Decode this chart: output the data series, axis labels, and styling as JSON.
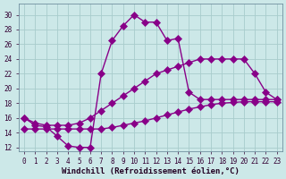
{
  "bg_color": "#cce8e8",
  "grid_color": "#a8cccc",
  "line_color": "#880088",
  "xlabel": "Windchill (Refroidissement éolien,°C)",
  "xlabel_fontsize": 6.5,
  "ytick_vals": [
    12,
    14,
    16,
    18,
    20,
    22,
    24,
    26,
    28,
    30
  ],
  "ylim": [
    11.5,
    31.5
  ],
  "xlim": [
    -0.5,
    23.5
  ],
  "line1_x": [
    0,
    1,
    2,
    3,
    4,
    5,
    6,
    7,
    8,
    9,
    10,
    11,
    12,
    13,
    14,
    15,
    16,
    17,
    18,
    19,
    20,
    21,
    22,
    23
  ],
  "line1_y": [
    16.0,
    15.0,
    14.8,
    13.5,
    12.2,
    12.0,
    12.0,
    22.0,
    26.5,
    28.5,
    30.0,
    29.0,
    29.0,
    26.5,
    26.8,
    19.5,
    18.5,
    18.5,
    18.5,
    18.5,
    18.5,
    18.5,
    18.5,
    18.5
  ],
  "line2_x": [
    0,
    1,
    2,
    3,
    4,
    5,
    6,
    7,
    8,
    9,
    10,
    11,
    12,
    13,
    14,
    15,
    16,
    17,
    18,
    19,
    20,
    21,
    22,
    23
  ],
  "line2_y": [
    16.0,
    15.3,
    15.0,
    15.0,
    15.0,
    15.3,
    16.0,
    17.0,
    18.0,
    19.0,
    20.0,
    21.0,
    22.0,
    22.5,
    23.0,
    23.5,
    24.0,
    24.0,
    24.0,
    24.0,
    24.0,
    22.0,
    19.5,
    18.5
  ],
  "line3_x": [
    0,
    1,
    2,
    3,
    4,
    5,
    6,
    7,
    8,
    9,
    10,
    11,
    12,
    13,
    14,
    15,
    16,
    17,
    18,
    19,
    20,
    21,
    22,
    23
  ],
  "line3_y": [
    14.5,
    14.5,
    14.5,
    14.5,
    14.5,
    14.5,
    14.5,
    14.5,
    14.7,
    15.0,
    15.3,
    15.6,
    16.0,
    16.4,
    16.8,
    17.2,
    17.5,
    17.8,
    18.0,
    18.1,
    18.2,
    18.2,
    18.2,
    18.2
  ],
  "marker_size": 4,
  "line_width": 1.0,
  "tick_fontsize": 5.5,
  "fig_width": 3.2,
  "fig_height": 2.0,
  "dpi": 100
}
